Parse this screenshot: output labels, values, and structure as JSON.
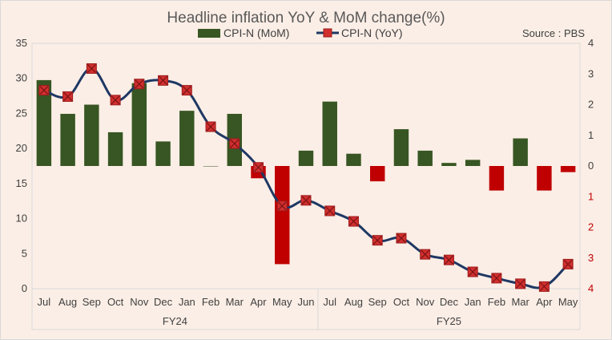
{
  "chart_data": {
    "type": "bar+line",
    "title": "Headline inflation YoY & MoM change(%)",
    "source": "Source : PBS",
    "categories": [
      "Jul",
      "Aug",
      "Sep",
      "Oct",
      "Nov",
      "Dec",
      "Jan",
      "Feb",
      "Mar",
      "Apr",
      "May",
      "Jun",
      "Jul",
      "Aug",
      "Sep",
      "Oct",
      "Nov",
      "Dec",
      "Jan",
      "Feb",
      "Mar",
      "Apr",
      "May"
    ],
    "groups": [
      {
        "label": "FY24",
        "start": 0,
        "end": 11
      },
      {
        "label": "FY25",
        "start": 12,
        "end": 22
      }
    ],
    "series": [
      {
        "name": "CPI-N (MoM)",
        "type": "bar",
        "axis": "right",
        "values": [
          2.8,
          1.7,
          2.0,
          1.1,
          2.7,
          0.8,
          1.8,
          0.0,
          1.7,
          -0.4,
          -3.2,
          0.5,
          2.1,
          0.4,
          -0.5,
          1.2,
          0.5,
          0.1,
          0.2,
          -0.8,
          0.9,
          -0.8,
          -0.2
        ]
      },
      {
        "name": "CPI-N (YoY)",
        "type": "line",
        "axis": "left",
        "values": [
          28.3,
          27.4,
          31.4,
          26.9,
          29.2,
          29.7,
          28.3,
          23.1,
          20.7,
          17.3,
          11.8,
          12.6,
          11.1,
          9.6,
          6.9,
          7.2,
          4.9,
          4.1,
          2.4,
          1.5,
          0.7,
          0.3,
          3.5
        ]
      }
    ],
    "y_left": {
      "min": 0,
      "max": 35,
      "ticks": [
        "0",
        "5",
        "10",
        "15",
        "20",
        "25",
        "30",
        "35"
      ]
    },
    "y_right": {
      "min": -4,
      "max": 4,
      "ticks": [
        "4",
        "3",
        "2",
        "1",
        "0",
        "1",
        "2",
        "3",
        "4"
      ]
    },
    "legend_position": "top-center",
    "colors": {
      "bar_positive": "#375623",
      "bar_negative": "#c00000",
      "line": "#1f3864",
      "marker_fill": "#d12f2f",
      "background": "#fbeee6"
    }
  }
}
